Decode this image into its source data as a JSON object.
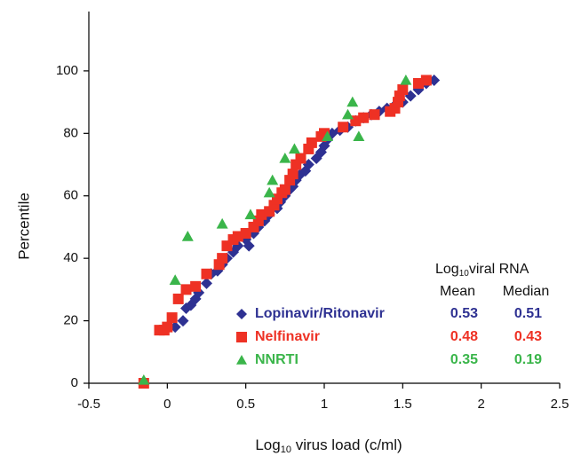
{
  "chart_data": {
    "type": "scatter",
    "xlabel_parts": [
      "Log",
      "10",
      " virus load (c/ml)"
    ],
    "ylabel": "Percentile",
    "xlim": [
      -0.5,
      2.5
    ],
    "xticks": [
      -0.5,
      0,
      0.5,
      1,
      1.5,
      2,
      2.5
    ],
    "ylim": [
      0,
      119
    ],
    "yticks": [
      0,
      20,
      40,
      60,
      80,
      100
    ],
    "grid": false,
    "legend_header_parts": [
      "Log",
      "10",
      "viral RNA"
    ],
    "legend_columns": [
      "Mean",
      "Median"
    ],
    "series": [
      {
        "name": "Lopinavir/Ritonavir",
        "color": "#2e3192",
        "marker": "diamond",
        "mean": 0.53,
        "median": 0.51,
        "x": [
          0.05,
          0.1,
          0.12,
          0.15,
          0.18,
          0.2,
          0.25,
          0.28,
          0.32,
          0.35,
          0.38,
          0.42,
          0.45,
          0.5,
          0.52,
          0.55,
          0.58,
          0.62,
          0.65,
          0.7,
          0.72,
          0.75,
          0.78,
          0.8,
          0.82,
          0.85,
          0.88,
          0.9,
          0.95,
          0.98,
          1.0,
          1.02,
          1.05,
          1.1,
          1.15,
          1.2,
          1.25,
          1.3,
          1.35,
          1.4,
          1.45,
          1.5,
          1.55,
          1.6,
          1.65,
          1.7
        ],
        "values": [
          18,
          20,
          24,
          25,
          27,
          29,
          32,
          35,
          36,
          38,
          40,
          42,
          44,
          46,
          44,
          48,
          50,
          52,
          54,
          56,
          58,
          60,
          62,
          63,
          65,
          67,
          68,
          70,
          72,
          74,
          76,
          78,
          80,
          81,
          82,
          84,
          85,
          86,
          87,
          88,
          89,
          90,
          92,
          94,
          96,
          97
        ]
      },
      {
        "name": "Nelfinavir",
        "color": "#ee3124",
        "marker": "square",
        "mean": 0.48,
        "median": 0.43,
        "x": [
          -0.15,
          -0.05,
          -0.02,
          0.0,
          0.03,
          0.07,
          0.12,
          0.18,
          0.25,
          0.33,
          0.35,
          0.38,
          0.42,
          0.45,
          0.5,
          0.55,
          0.58,
          0.6,
          0.65,
          0.68,
          0.7,
          0.73,
          0.75,
          0.78,
          0.8,
          0.82,
          0.85,
          0.9,
          0.92,
          0.98,
          1.0,
          1.12,
          1.2,
          1.25,
          1.32,
          1.42,
          1.45,
          1.47,
          1.48,
          1.5,
          1.6,
          1.65
        ],
        "values": [
          0,
          17,
          17,
          18,
          21,
          27,
          30,
          31,
          35,
          38,
          40,
          44,
          46,
          47,
          48,
          50,
          52,
          54,
          55,
          57,
          59,
          61,
          62,
          65,
          67,
          70,
          72,
          75,
          77,
          79,
          80,
          82,
          84,
          85,
          86,
          87,
          88,
          90,
          92,
          94,
          96,
          97
        ]
      },
      {
        "name": "NNRTI",
        "color": "#3ab54a",
        "marker": "triangle",
        "mean": 0.35,
        "median": 0.19,
        "x": [
          -0.15,
          0.05,
          0.13,
          0.35,
          0.53,
          0.65,
          0.67,
          0.75,
          0.81,
          1.02,
          1.15,
          1.18,
          1.22,
          1.52
        ],
        "values": [
          1,
          33,
          47,
          51,
          54,
          61,
          65,
          72,
          75,
          79,
          86,
          90,
          79,
          97
        ]
      }
    ]
  }
}
